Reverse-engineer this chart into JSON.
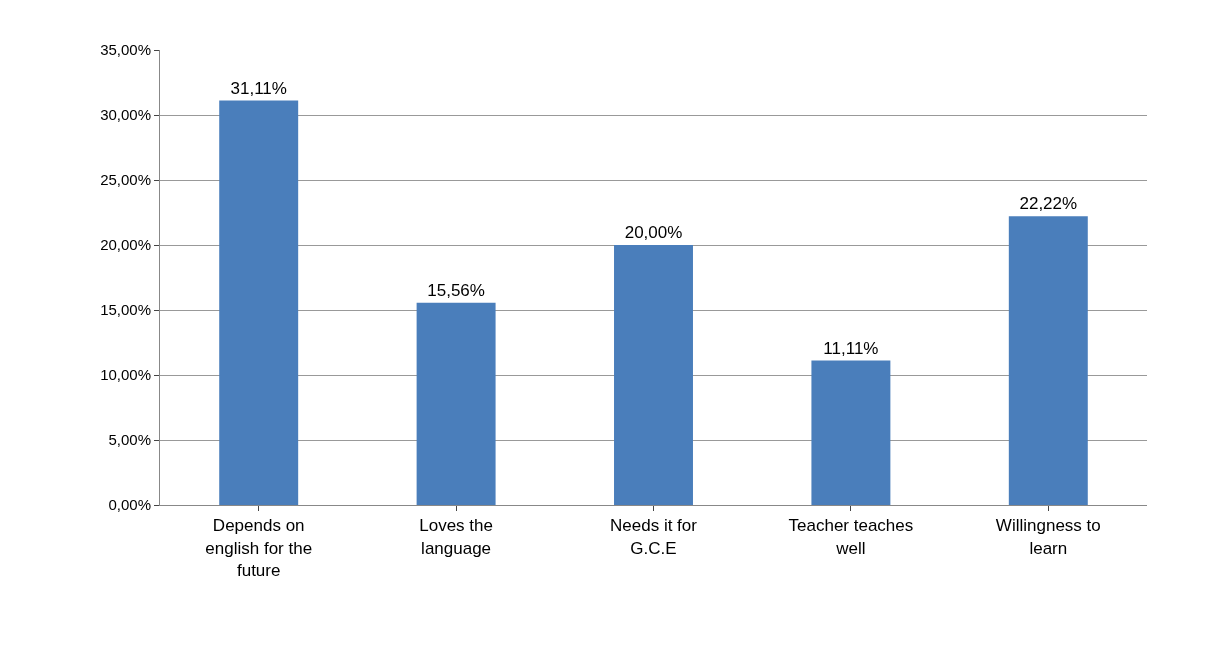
{
  "chart_data": {
    "type": "bar",
    "categories": [
      "Depends on english for the future",
      "Loves the language",
      "Needs it for G.C.E",
      "Teacher teaches well",
      "Willingness to learn"
    ],
    "values": [
      31.11,
      15.56,
      20.0,
      11.11,
      22.22
    ],
    "value_labels": [
      "31,11%",
      "15,56%",
      "20,00%",
      "11,11%",
      "22,22%"
    ],
    "color": "#4a7ebb",
    "ylim": [
      0,
      35
    ],
    "yticks": [
      {
        "value": 0,
        "label": "0,00%"
      },
      {
        "value": 5,
        "label": "5,00%"
      },
      {
        "value": 10,
        "label": "10,00%"
      },
      {
        "value": 15,
        "label": "15,00%"
      },
      {
        "value": 20,
        "label": "20,00%"
      },
      {
        "value": 25,
        "label": "25,00%"
      },
      {
        "value": 30,
        "label": "30,00%"
      },
      {
        "value": 35,
        "label": "35,00%"
      }
    ],
    "grid": "y",
    "legend": false
  }
}
